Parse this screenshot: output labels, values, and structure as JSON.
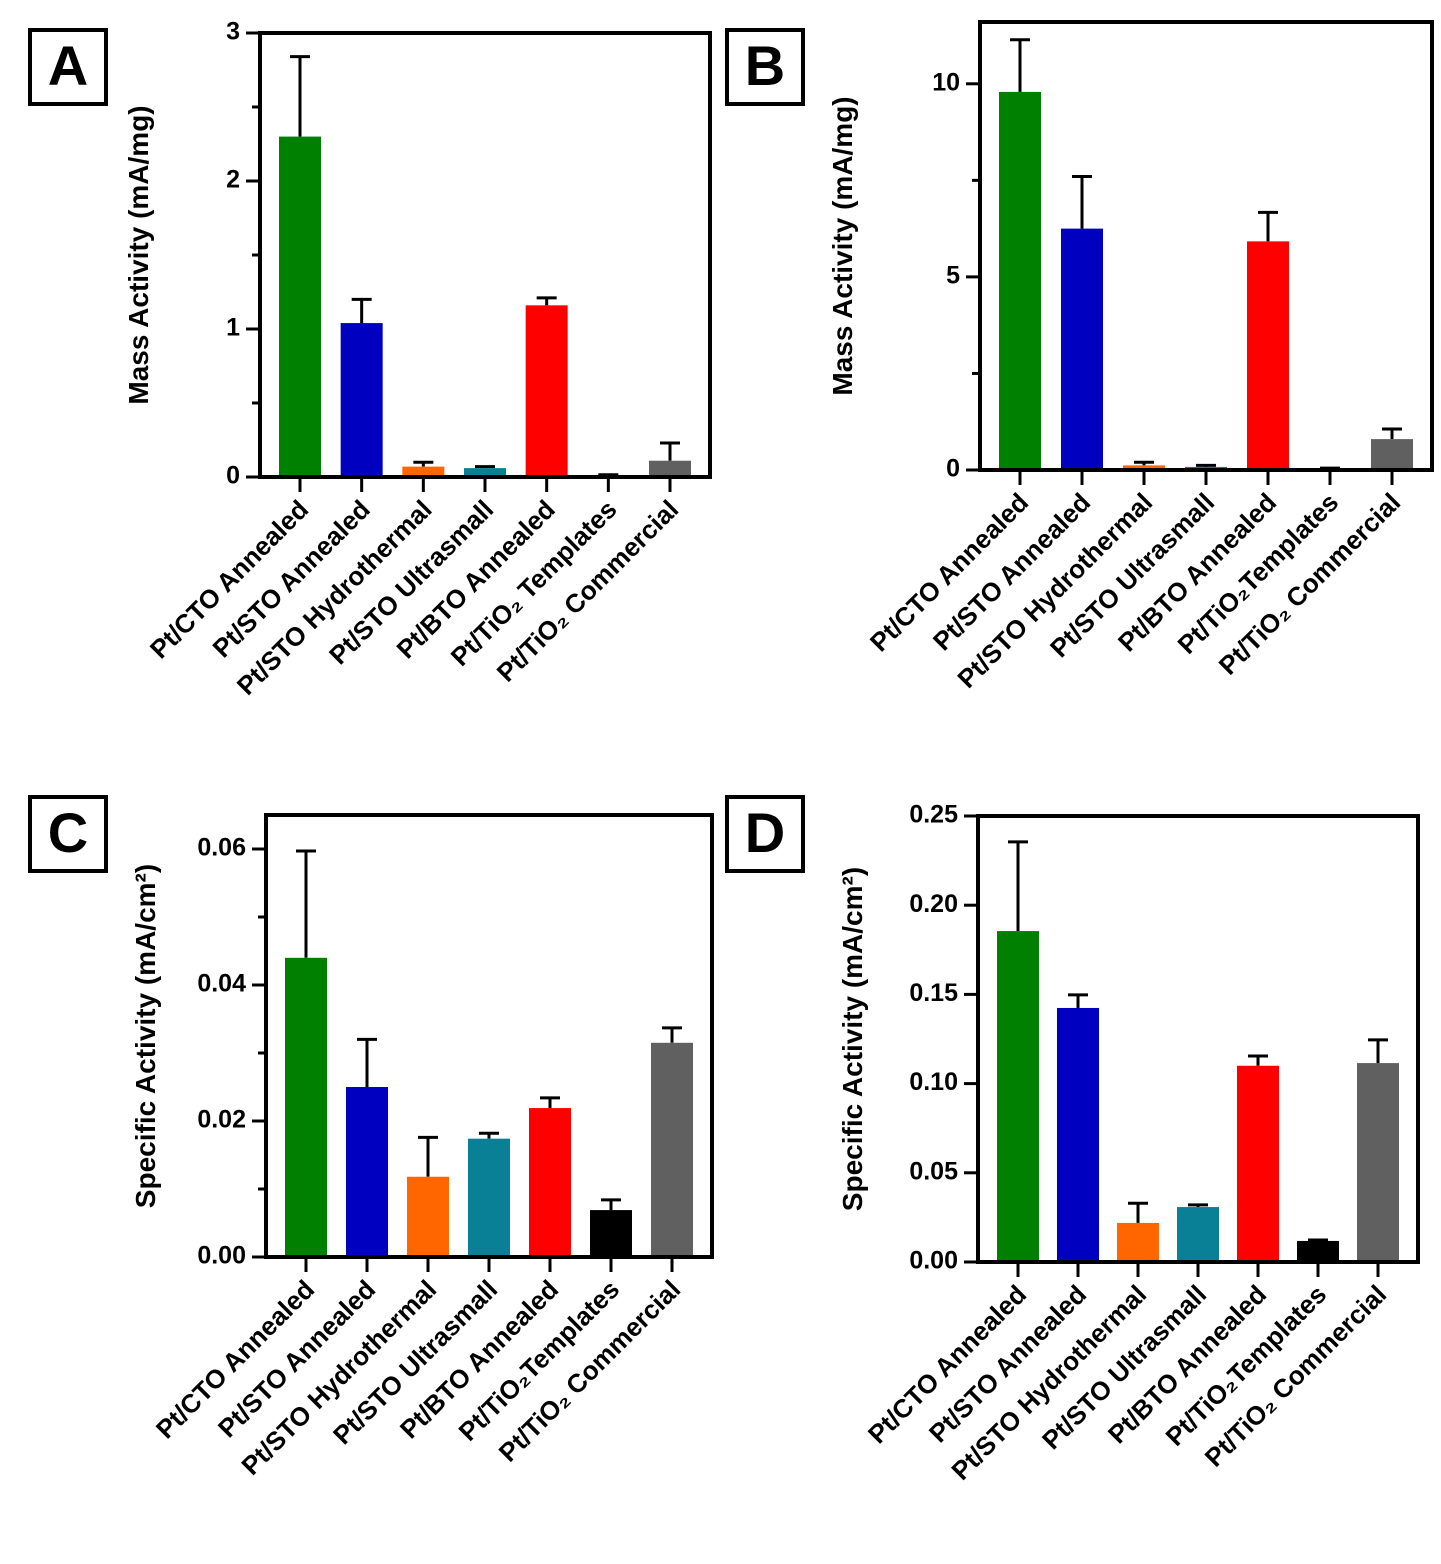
{
  "chart_data": [
    {
      "type": "bar",
      "panel_label": "A",
      "ylabel": "Mass Activity (mA/mg)",
      "categories": [
        "Pt/CTO Annealed",
        "Pt/STO Annealed",
        "Pt/STO Hydrothermal",
        "Pt/STO Ultrasmall",
        "Pt/BTO Annealed",
        "Pt/TiO₂ Templates",
        "Pt/TiO₂ Commercial"
      ],
      "values": [
        2.3,
        1.04,
        0.07,
        0.06,
        1.16,
        0.01,
        0.11
      ],
      "errors": [
        0.54,
        0.16,
        0.03,
        0.01,
        0.05,
        0.005,
        0.12
      ],
      "colors": [
        "#008000",
        "#0000c0",
        "#ff6600",
        "#0a8096",
        "#ff0000",
        "#000000",
        "#606060"
      ],
      "ylim": [
        0,
        3
      ],
      "yticks": [
        0,
        1,
        2,
        3
      ],
      "minor_yticks": [
        0.5,
        1.5,
        2.5
      ]
    },
    {
      "type": "bar",
      "panel_label": "B",
      "ylabel": "Mass Activity (mA/mg)",
      "categories": [
        "Pt/CTO Annealed",
        "Pt/STO Annealed",
        "Pt/STO Hydrothermal",
        "Pt/STO Ultrasmall",
        "Pt/BTO Annealed",
        "Pt/TiO₂Templates",
        "Pt/TiO₂ Commercial"
      ],
      "values": [
        9.79,
        6.25,
        0.12,
        0.08,
        5.92,
        0.03,
        0.8
      ],
      "errors": [
        1.35,
        1.35,
        0.08,
        0.04,
        0.75,
        0.02,
        0.26
      ],
      "colors": [
        "#008000",
        "#0000c0",
        "#ff6600",
        "#0a8096",
        "#ff0000",
        "#000000",
        "#606060"
      ],
      "ylim": [
        0,
        11.6
      ],
      "yticks": [
        0,
        5,
        10
      ],
      "minor_yticks": [
        2.5,
        7.5
      ]
    },
    {
      "type": "bar",
      "panel_label": "C",
      "ylabel": "Specific Activity (mA/cm²)",
      "categories": [
        "Pt/CTO Annealed",
        "Pt/STO Annealed",
        "Pt/STO Hydrothermal",
        "Pt/STO Ultrasmall",
        "Pt/BTO Annealed",
        "Pt/TiO₂Templates",
        "Pt/TiO₂ Commercial"
      ],
      "values": [
        0.044,
        0.025,
        0.0118,
        0.0174,
        0.0219,
        0.0069,
        0.0315
      ],
      "errors": [
        0.0157,
        0.007,
        0.0058,
        0.0008,
        0.0015,
        0.0015,
        0.0022
      ],
      "colors": [
        "#008000",
        "#0000c0",
        "#ff6600",
        "#0a8096",
        "#ff0000",
        "#000000",
        "#606060"
      ],
      "ylim": [
        0,
        0.065
      ],
      "yticks": [
        {
          "value": 0,
          "label": "0.00"
        },
        0.02,
        0.04,
        0.06
      ],
      "minor_yticks": [
        0.01,
        0.03,
        0.05
      ]
    },
    {
      "type": "bar",
      "panel_label": "D",
      "ylabel": "Specific Activity (mA/cm²)",
      "categories": [
        "Pt/CTO Annealed",
        "Pt/STO Annealed",
        "Pt/STO Hydrothermal",
        "Pt/STO Ultrasmall",
        "Pt/BTO Annealed",
        "Pt/TiO₂Templates",
        "Pt/TiO₂ Commercial"
      ],
      "values": [
        0.1855,
        0.1424,
        0.0219,
        0.0308,
        0.11,
        0.0118,
        0.1115
      ],
      "errors": [
        0.05,
        0.0073,
        0.011,
        0.0012,
        0.0055,
        0.0005,
        0.013
      ],
      "colors": [
        "#008000",
        "#0000c0",
        "#ff6600",
        "#0a8096",
        "#ff0000",
        "#000000",
        "#606060"
      ],
      "ylim": [
        0,
        0.25
      ],
      "yticks": [
        {
          "value": 0,
          "label": "0.00"
        },
        0.05,
        {
          "value": 0.1,
          "label": "0.10"
        },
        0.15,
        {
          "value": 0.2,
          "label": "0.20"
        },
        0.25
      ],
      "minor_yticks": []
    }
  ]
}
